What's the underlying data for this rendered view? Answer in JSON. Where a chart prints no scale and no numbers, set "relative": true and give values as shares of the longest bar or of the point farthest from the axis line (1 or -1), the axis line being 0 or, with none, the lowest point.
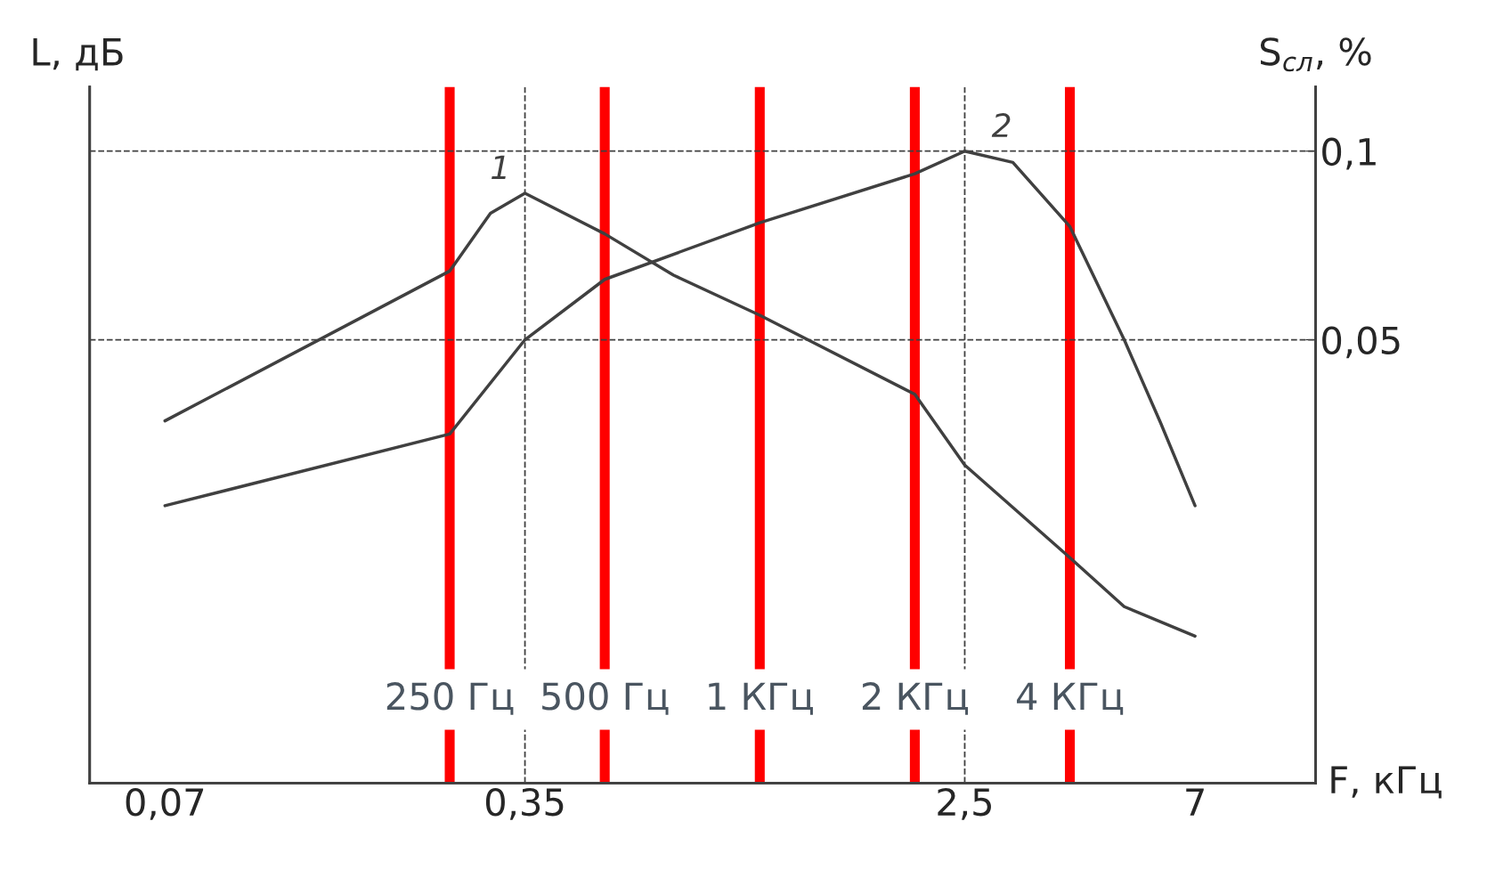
{
  "chart_data": {
    "type": "line",
    "relative": true,
    "xlabel": "F, кГц",
    "ylabel": "L, дБ",
    "y2label": "S$_{сл}$, %",
    "x": [
      0.07,
      0.25,
      0.3,
      0.35,
      0.5,
      0.68,
      1,
      2,
      2.5,
      4,
      5.1,
      7
    ],
    "series": [
      {
        "name": "1",
        "color": "#404040",
        "values": [
          0.614,
          0.868,
          0.966,
          1,
          0.931,
          0.861,
          0.793,
          0.659,
          0.539,
          0.382,
          0.299,
          0.249
        ]
      },
      {
        "name": "2",
        "color": "#404040",
        "axis": "y2",
        "x": [
          0.07,
          0.25,
          0.35,
          0.5,
          1,
          2,
          2.5,
          3.1,
          4,
          5.1,
          6,
          7
        ],
        "values": [
          0.006,
          0.025,
          0.05,
          0.066,
          0.081,
          0.094,
          0.1,
          0.097,
          0.08,
          0.05,
          0.028,
          0.006
        ]
      }
    ],
    "log": "x",
    "xlim": [
      0.05,
      12
    ],
    "xticks": [
      {
        "value": 0.07,
        "label": "0,07"
      },
      {
        "value": 0.35,
        "label": "0,35"
      },
      {
        "value": 2.5,
        "label": "2,5"
      },
      7
    ],
    "y2lim": [
      -0.0675,
      0.117
    ],
    "y2ticks": [
      {
        "value": 0.05,
        "label": "0,05"
      },
      {
        "value": 0.1,
        "label": "0,1"
      }
    ],
    "ref_lines": [
      {
        "axis": "x",
        "value": 0.35,
        "color": "#404040",
        "line_style": "dashed"
      },
      {
        "axis": "x",
        "value": 2.5,
        "color": "#404040",
        "line_style": "dashed"
      },
      {
        "axis": "y2",
        "value": 0.05,
        "color": "#404040",
        "line_style": "dashed"
      },
      {
        "axis": "y2",
        "value": 0.1,
        "color": "#404040",
        "line_style": "dashed"
      },
      {
        "axis": "x",
        "value": 0.25,
        "label": "250 Гц",
        "color": "#ff0000",
        "line_style": "solid"
      },
      {
        "axis": "x",
        "value": 0.5,
        "label": "500 Гц",
        "color": "#ff0000",
        "line_style": "solid"
      },
      {
        "axis": "x",
        "value": 1,
        "label": "1 КГц",
        "color": "#ff0000",
        "line_style": "solid"
      },
      {
        "axis": "x",
        "value": 2,
        "label": "2 КГц",
        "color": "#ff0000",
        "line_style": "solid"
      },
      {
        "axis": "x",
        "value": 4,
        "label": "4 КГц",
        "color": "#ff0000",
        "line_style": "solid"
      }
    ]
  }
}
